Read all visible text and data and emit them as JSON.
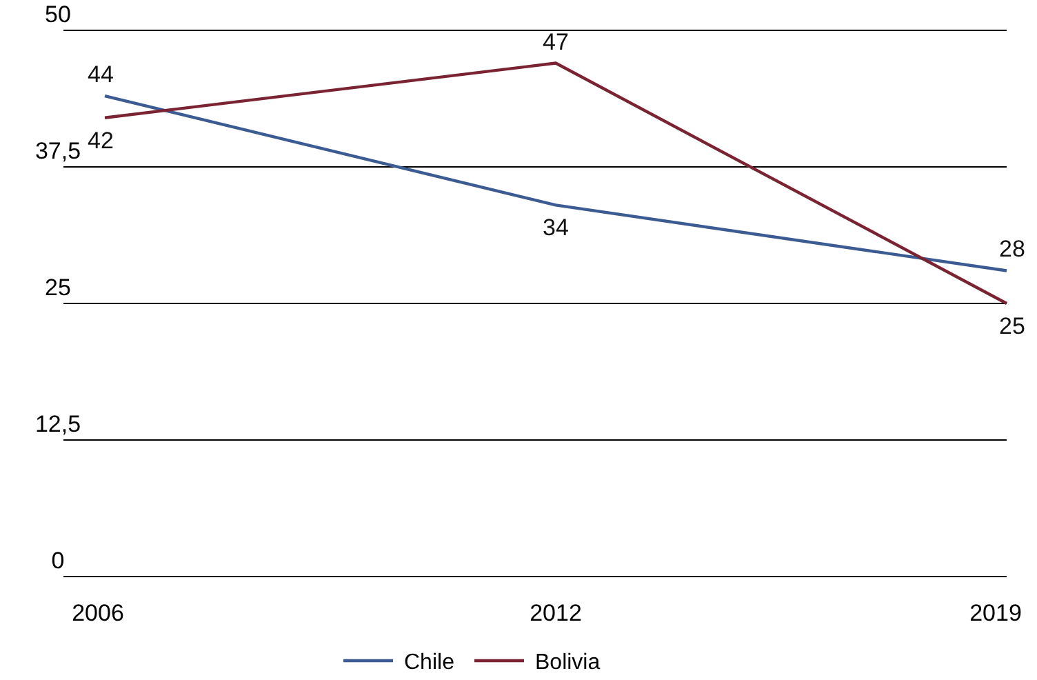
{
  "chart_data": {
    "type": "line",
    "categories": [
      "2006",
      "2012",
      "2019"
    ],
    "series": [
      {
        "name": "Chile",
        "color": "#3b5b92",
        "values": [
          44,
          34,
          28
        ]
      },
      {
        "name": "Bolivia",
        "color": "#7a2333",
        "values": [
          42,
          47,
          25
        ]
      }
    ],
    "ylim": [
      0,
      50
    ],
    "yticks": [
      0,
      {
        "value": 12.5,
        "label": "12,5"
      },
      25,
      {
        "value": 37.5,
        "label": "37,5"
      },
      50
    ],
    "grid": "y",
    "legend": "bottom",
    "data_labels": true,
    "marker": "none",
    "line_style": "solid"
  }
}
